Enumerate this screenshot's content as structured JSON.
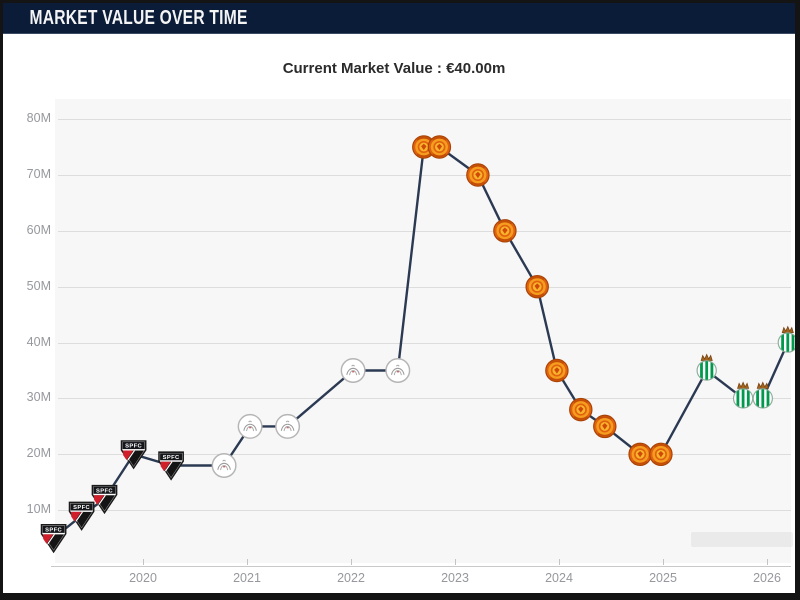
{
  "header": {
    "title": "MARKET VALUE OVER TIME"
  },
  "subtitle": "Current Market Value : €40.00m",
  "colors": {
    "header_bg": "#0a1c38",
    "plot_bg": "#f7f7f8",
    "grid_line": "#dddddd",
    "axis_text": "#96989d",
    "line_color": "#2b3a52",
    "spfc_red": "#d01f2b",
    "manutd_orange": "#e06110",
    "betis_green": "#00994d"
  },
  "chart_data": {
    "type": "line",
    "title": "Market value over time",
    "subtitle": "Current Market Value : €40.00m",
    "unit": "€ million",
    "current_value_m": 40.0,
    "xlabel": "",
    "ylabel": "",
    "xlim": [
      2019.1,
      2026.35
    ],
    "ylim": [
      0,
      85
    ],
    "grid": "horizontal",
    "legend": "none",
    "y_ticks": [
      "80M",
      "70M",
      "60M",
      "50M",
      "40M",
      "30M",
      "20M",
      "10M"
    ],
    "x_ticks": [
      "2020",
      "2021",
      "2022",
      "2023",
      "2024",
      "2025",
      "2026"
    ],
    "clubs": {
      "spfc": "São Paulo FC",
      "ajax": "Ajax Amsterdam",
      "manutd": "Manchester United",
      "betis": "Real Betis"
    },
    "points": [
      {
        "year": 2019.14,
        "value_m": 5,
        "club": "spfc"
      },
      {
        "year": 2019.41,
        "value_m": 9,
        "club": "spfc"
      },
      {
        "year": 2019.63,
        "value_m": 12,
        "club": "spfc"
      },
      {
        "year": 2019.91,
        "value_m": 20,
        "club": "spfc"
      },
      {
        "year": 2020.27,
        "value_m": 18,
        "club": "spfc"
      },
      {
        "year": 2020.78,
        "value_m": 18,
        "club": "ajax"
      },
      {
        "year": 2021.03,
        "value_m": 25,
        "club": "ajax"
      },
      {
        "year": 2021.39,
        "value_m": 25,
        "club": "ajax"
      },
      {
        "year": 2022.02,
        "value_m": 35,
        "club": "ajax"
      },
      {
        "year": 2022.45,
        "value_m": 35,
        "club": "ajax"
      },
      {
        "year": 2022.7,
        "value_m": 75,
        "club": "manutd"
      },
      {
        "year": 2022.85,
        "value_m": 75,
        "club": "manutd"
      },
      {
        "year": 2023.22,
        "value_m": 70,
        "club": "manutd"
      },
      {
        "year": 2023.48,
        "value_m": 60,
        "club": "manutd"
      },
      {
        "year": 2023.79,
        "value_m": 50,
        "club": "manutd"
      },
      {
        "year": 2023.98,
        "value_m": 35,
        "club": "manutd"
      },
      {
        "year": 2024.21,
        "value_m": 28,
        "club": "manutd"
      },
      {
        "year": 2024.44,
        "value_m": 25,
        "club": "manutd"
      },
      {
        "year": 2024.78,
        "value_m": 20,
        "club": "manutd"
      },
      {
        "year": 2024.98,
        "value_m": 20,
        "club": "manutd"
      },
      {
        "year": 2025.42,
        "value_m": 35,
        "club": "betis"
      },
      {
        "year": 2025.77,
        "value_m": 30,
        "club": "betis"
      },
      {
        "year": 2025.96,
        "value_m": 30,
        "club": "betis"
      },
      {
        "year": 2026.2,
        "value_m": 40,
        "club": "betis"
      }
    ]
  }
}
